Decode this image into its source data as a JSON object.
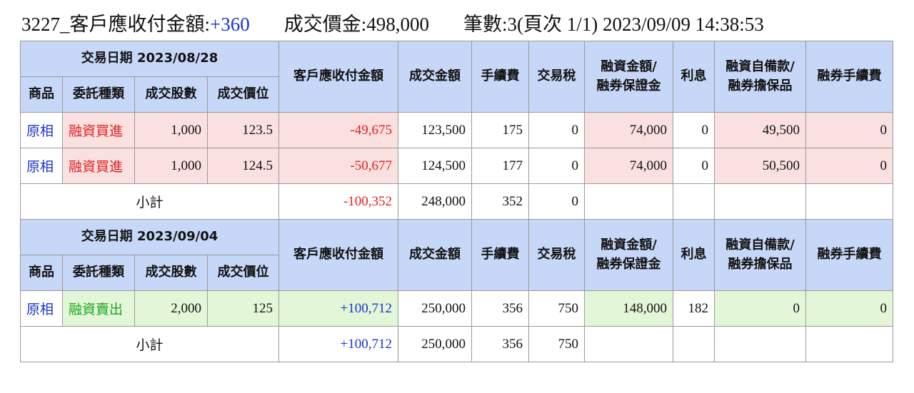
{
  "header": {
    "code_label": "3227_客戶應收付金額:",
    "net": "+360",
    "deal": "成交價金:498,000",
    "count": "筆數:3(頁次 1/1) 2023/09/09 14:38:53"
  },
  "groups": [
    {
      "date": "交易日期 2023/08/28",
      "columns": [
        "商品",
        "委託種類",
        "成交股數",
        "成交價位",
        "客戶應收付金額",
        "成交金額",
        "手續費",
        "交易稅",
        [
          "融資金額/",
          "融券保證金"
        ],
        "利息",
        [
          "融資自備款/",
          "融券擔保品"
        ],
        "融券手續費"
      ],
      "rows": [
        [
          "原相",
          "融資買進",
          "1,000",
          "123.5",
          "-49,675",
          "123,500",
          "175",
          "0",
          "74,000",
          "0",
          "49,500",
          "0"
        ],
        [
          "原相",
          "融資買進",
          "1,000",
          "124.5",
          "-50,677",
          "124,500",
          "177",
          "0",
          "74,000",
          "0",
          "50,500",
          "0"
        ]
      ],
      "subtotal": {
        "label": "小計",
        "values": [
          "-100,352",
          "248,000",
          "352",
          "0"
        ]
      }
    },
    {
      "date": "交易日期 2023/09/04",
      "columns": [
        "商品",
        "委託種類",
        "成交股數",
        "成交價位",
        "客戶應收付金額",
        "成交金額",
        "手續費",
        "交易稅",
        [
          "融資金額/",
          "融券保證金"
        ],
        "利息",
        [
          "融資自備款/",
          "融券擔保品"
        ],
        "融券手續費"
      ],
      "rows": [
        [
          "原相",
          "融資賣出",
          "2,000",
          "125",
          "+100,712",
          "250,000",
          "356",
          "750",
          "148,000",
          "182",
          "0",
          "0"
        ]
      ],
      "subtotal": {
        "label": "小計",
        "values": [
          "+100,712",
          "250,000",
          "356",
          "750"
        ]
      }
    }
  ]
}
